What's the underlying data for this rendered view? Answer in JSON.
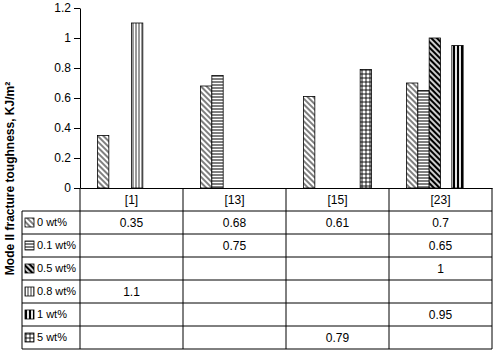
{
  "chart_data": {
    "type": "bar",
    "ylabel": "Mode II fracture toughness, KJ/m²",
    "categories": [
      "[1]",
      "[13]",
      "[15]",
      "[23]"
    ],
    "series": [
      {
        "name": "0 wt%",
        "values": [
          0.35,
          0.68,
          0.61,
          0.7
        ]
      },
      {
        "name": "0.1 wt%",
        "values": [
          null,
          0.75,
          null,
          0.65
        ]
      },
      {
        "name": "0.5 wt%",
        "values": [
          null,
          null,
          null,
          1
        ]
      },
      {
        "name": "0.8 wt%",
        "values": [
          1.1,
          null,
          null,
          null
        ]
      },
      {
        "name": "1 wt%",
        "values": [
          null,
          null,
          null,
          0.95
        ]
      },
      {
        "name": "5 wt%",
        "values": [
          null,
          null,
          0.79,
          null
        ]
      }
    ],
    "ylim": [
      0,
      1.2
    ],
    "yticks": [
      0,
      0.2,
      0.4,
      0.6,
      0.8,
      1,
      1.2
    ],
    "grid": false
  }
}
